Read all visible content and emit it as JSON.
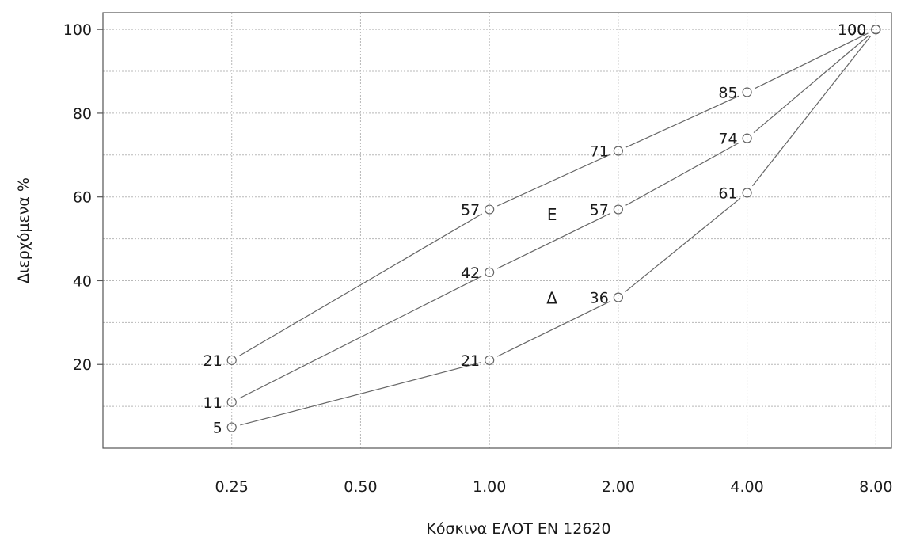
{
  "chart_data": {
    "type": "line",
    "title": "",
    "xlabel": "Κόσκινα ΕΛΟΤ EN 12620",
    "ylabel": "Διερχόμενα %",
    "x_scale": "log2",
    "x": [
      0.25,
      0.5,
      1,
      2,
      4,
      8
    ],
    "x_tick_labels": [
      "0.25",
      "0.50",
      "1.00",
      "2.00",
      "4.00",
      "8.00"
    ],
    "y_ticks": [
      20,
      40,
      60,
      80,
      100
    ],
    "y_tick_labels": [
      "20",
      "40",
      "60",
      "80",
      "100"
    ],
    "xlim": [
      0.125,
      8.7
    ],
    "ylim": [
      0,
      104
    ],
    "grid": true,
    "legend": "none",
    "series": [
      {
        "points": [
          {
            "x": 0.25,
            "y": 21,
            "label": "21"
          },
          {
            "x": 1,
            "y": 57,
            "label": "57"
          },
          {
            "x": 2,
            "y": 71,
            "label": "71"
          },
          {
            "x": 4,
            "y": 85,
            "label": "85"
          },
          {
            "x": 8,
            "y": 100,
            "label": "100"
          }
        ]
      },
      {
        "points": [
          {
            "x": 0.25,
            "y": 11,
            "label": "11"
          },
          {
            "x": 1,
            "y": 42,
            "label": "42"
          },
          {
            "x": 2,
            "y": 57,
            "label": "57"
          },
          {
            "x": 4,
            "y": 74,
            "label": "74"
          },
          {
            "x": 8,
            "y": 100,
            "label": "100"
          }
        ]
      },
      {
        "points": [
          {
            "x": 0.25,
            "y": 5,
            "label": "5"
          },
          {
            "x": 1,
            "y": 21,
            "label": "21"
          },
          {
            "x": 2,
            "y": 36,
            "label": "36"
          },
          {
            "x": 4,
            "y": 61,
            "label": "61"
          },
          {
            "x": 8,
            "y": 100,
            "label": "100"
          }
        ]
      }
    ],
    "annotations": [
      {
        "text": "Ε",
        "x": 1.4,
        "y": 54.5
      },
      {
        "text": "Δ",
        "x": 1.4,
        "y": 34.5
      }
    ],
    "colors": {
      "line": "#666666",
      "marker": "#666666",
      "grid": "#b8b8b8",
      "frame": "#555555",
      "text": "#1a1a1a"
    }
  }
}
